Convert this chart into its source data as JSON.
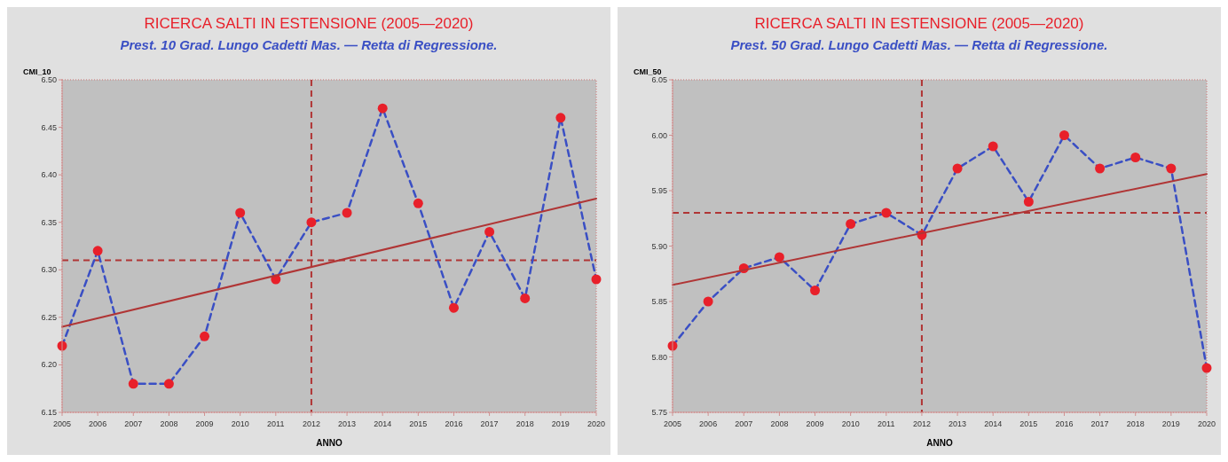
{
  "chart_data": [
    {
      "type": "line",
      "title": "RICERCA SALTI IN  ESTENSIONE (2005—2020)",
      "subtitle": "Prest. 10 Grad. Lungo Cadetti Mas. — Retta di Regressione.",
      "xlabel": "ANNO",
      "ylabel": "CMI_10",
      "x": [
        2005,
        2006,
        2007,
        2008,
        2009,
        2010,
        2011,
        2012,
        2013,
        2014,
        2015,
        2016,
        2017,
        2018,
        2019,
        2020
      ],
      "series": [
        {
          "color": "#3a4fc4",
          "line_style": "dashed",
          "marker": "none",
          "values": [
            6.22,
            6.32,
            6.18,
            6.18,
            6.23,
            6.36,
            6.29,
            6.35,
            6.36,
            6.47,
            6.37,
            6.26,
            6.34,
            6.27,
            6.46,
            6.29
          ]
        },
        {
          "type": "scatter",
          "color": "#e8202a",
          "marker": "circle",
          "values": [
            6.22,
            6.32,
            6.18,
            6.18,
            6.23,
            6.36,
            6.29,
            6.35,
            6.36,
            6.47,
            6.37,
            6.26,
            6.34,
            6.27,
            6.46,
            6.29
          ]
        },
        {
          "color": "#b03535",
          "line_style": "solid",
          "marker": "none",
          "values": [
            6.24,
            null,
            null,
            null,
            null,
            null,
            null,
            null,
            null,
            null,
            null,
            null,
            null,
            null,
            null,
            6.375
          ]
        }
      ],
      "xlim": [
        2005,
        2020
      ],
      "xticks": [
        2005,
        2006,
        2007,
        2008,
        2009,
        2010,
        2011,
        2012,
        2013,
        2014,
        2015,
        2016,
        2017,
        2018,
        2019,
        2020
      ],
      "ylim": [
        6.15,
        6.5
      ],
      "yticks": [
        6.15,
        {
          "value": 6.2,
          "label": "6.20"
        },
        6.25,
        {
          "value": 6.3,
          "label": "6.30"
        },
        6.35,
        {
          "value": 6.4,
          "label": "6.40"
        },
        6.45,
        {
          "value": 6.5,
          "label": "6.50"
        }
      ],
      "ref_lines": [
        {
          "axis": "y",
          "value": 6.31,
          "color": "#b03535",
          "line_style": "dashed"
        },
        {
          "axis": "x",
          "value": 2012,
          "color": "#b03535",
          "line_style": "dashed"
        }
      ],
      "grid": false
    },
    {
      "type": "line",
      "title": "RICERCA SALTI IN  ESTENSIONE (2005—2020)",
      "subtitle": "Prest. 50 Grad. Lungo Cadetti Mas. — Retta di Regressione.",
      "xlabel": "ANNO",
      "ylabel": "CMI_50",
      "x": [
        2005,
        2006,
        2007,
        2008,
        2009,
        2010,
        2011,
        2012,
        2013,
        2014,
        2015,
        2016,
        2017,
        2018,
        2019,
        2020
      ],
      "series": [
        {
          "color": "#3a4fc4",
          "line_style": "dashed",
          "marker": "none",
          "values": [
            5.81,
            5.85,
            5.88,
            5.89,
            5.86,
            5.92,
            5.93,
            5.91,
            5.97,
            5.99,
            5.94,
            6.0,
            5.97,
            5.98,
            5.97,
            5.79
          ]
        },
        {
          "type": "scatter",
          "color": "#e8202a",
          "marker": "circle",
          "values": [
            5.81,
            5.85,
            5.88,
            5.89,
            5.86,
            5.92,
            5.93,
            5.91,
            5.97,
            5.99,
            5.94,
            6.0,
            5.97,
            5.98,
            5.97,
            5.79
          ]
        },
        {
          "color": "#b03535",
          "line_style": "solid",
          "marker": "none",
          "values": [
            5.865,
            null,
            null,
            null,
            null,
            null,
            null,
            null,
            null,
            null,
            null,
            null,
            null,
            null,
            null,
            5.965
          ]
        }
      ],
      "xlim": [
        2005,
        2020
      ],
      "xticks": [
        2005,
        2006,
        2007,
        2008,
        2009,
        2010,
        2011,
        2012,
        2013,
        2014,
        2015,
        2016,
        2017,
        2018,
        2019,
        2020
      ],
      "ylim": [
        5.75,
        6.05
      ],
      "yticks": [
        5.75,
        {
          "value": 5.8,
          "label": "5.80"
        },
        5.85,
        {
          "value": 5.9,
          "label": "5.90"
        },
        5.95,
        {
          "value": 6.0,
          "label": "6.00"
        },
        6.05
      ],
      "ref_lines": [
        {
          "axis": "y",
          "value": 5.93,
          "color": "#b03535",
          "line_style": "dashed"
        },
        {
          "axis": "x",
          "value": 2012,
          "color": "#b03535",
          "line_style": "dashed"
        }
      ],
      "grid": false
    }
  ]
}
